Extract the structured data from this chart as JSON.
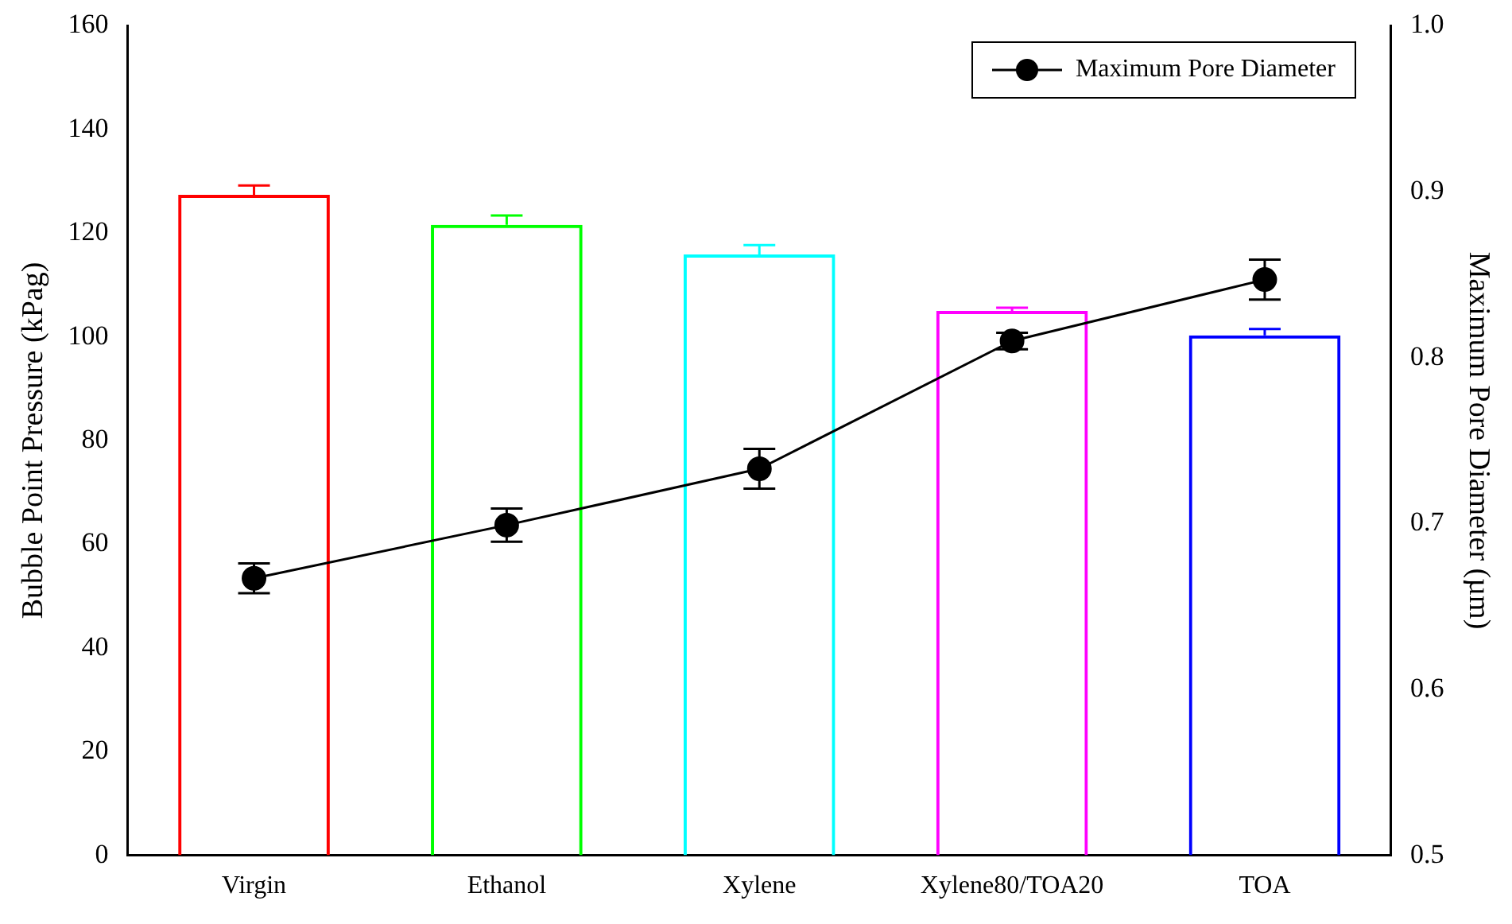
{
  "chart_data": {
    "type": "bar",
    "categories": [
      "Virgin",
      "Ethanol",
      "Xylene",
      "Xylene80/TOA20",
      "TOA"
    ],
    "series": [
      {
        "colors": [
          "#ff0000",
          "#00ff00",
          "#00ffff",
          "#ff00ff",
          "#0000ff"
        ],
        "values": [
          127.4,
          121.6,
          115.9,
          105.0,
          100.3
        ],
        "errors": [
          1.8,
          1.8,
          1.8,
          0.6,
          1.2
        ]
      },
      {
        "type": "line",
        "name": "Maximum Pore Diameter",
        "color": "#000000",
        "axis": "y2",
        "marker": "circle",
        "values": [
          0.667,
          0.699,
          0.733,
          0.81,
          0.847
        ],
        "errors": [
          0.009,
          0.01,
          0.012,
          0.005,
          0.012
        ]
      }
    ],
    "ylabel": "Bubble Point Pressure (kPag)",
    "y2label": "Maximum Pore Diameter (µm)",
    "ylim": [
      0,
      160
    ],
    "yticks": [
      0,
      20,
      40,
      60,
      80,
      100,
      120,
      140,
      160
    ],
    "y2lim": [
      0.5,
      1.0
    ],
    "y2ticks": [
      0.5,
      0.6,
      0.7,
      0.8,
      0.9,
      {
        "value": 1,
        "label": "1.0"
      }
    ],
    "grid": false,
    "legend": "top right"
  }
}
